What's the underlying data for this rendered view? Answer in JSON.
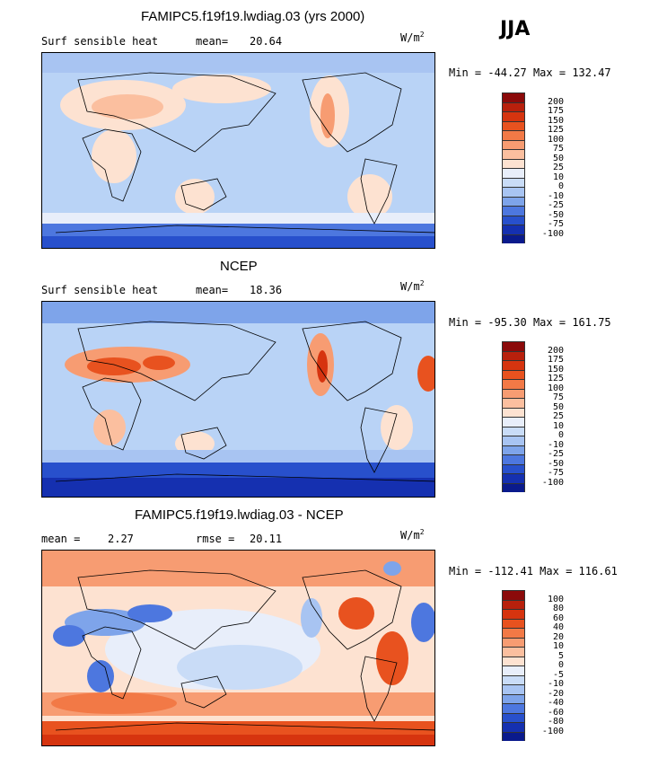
{
  "season": "JJA",
  "chart_data": [
    {
      "type": "heatmap",
      "title": "FAMIPC5.f19f19.lwdiag.03 (yrs 2000)",
      "field": "Surf sensible heat",
      "mean_label": "mean=",
      "mean": "20.64",
      "units": "W/m",
      "units_power": "2",
      "min_label": "Min =",
      "min": "-44.27",
      "max_label": "Max =",
      "max": "132.47",
      "colorbar": {
        "levels": [
          "200",
          "175",
          "150",
          "125",
          "100",
          "75",
          "50",
          "25",
          "10",
          "0",
          "-10",
          "-25",
          "-50",
          "-75",
          "-100"
        ],
        "colors": [
          "#8b0a0a",
          "#b8200c",
          "#d6340f",
          "#e8521f",
          "#f27946",
          "#f79c72",
          "#fbbf9f",
          "#fde2d1",
          "#e8eefa",
          "#c9dcf7",
          "#a8c4f2",
          "#7ea4ea",
          "#4d77df",
          "#2850cc",
          "#1530b0",
          "#0a1a8c"
        ]
      }
    },
    {
      "type": "heatmap",
      "title": "NCEP",
      "field": "Surf sensible heat",
      "mean_label": "mean=",
      "mean": "18.36",
      "units": "W/m",
      "units_power": "2",
      "min_label": "Min =",
      "min": "-95.30",
      "max_label": "Max =",
      "max": "161.75",
      "colorbar": {
        "levels": [
          "200",
          "175",
          "150",
          "125",
          "100",
          "75",
          "50",
          "25",
          "10",
          "0",
          "-10",
          "-25",
          "-50",
          "-75",
          "-100"
        ],
        "colors": [
          "#8b0a0a",
          "#b8200c",
          "#d6340f",
          "#e8521f",
          "#f27946",
          "#f79c72",
          "#fbbf9f",
          "#fde2d1",
          "#e8eefa",
          "#c9dcf7",
          "#a8c4f2",
          "#7ea4ea",
          "#4d77df",
          "#2850cc",
          "#1530b0",
          "#0a1a8c"
        ]
      }
    },
    {
      "type": "heatmap",
      "title": "FAMIPC5.f19f19.lwdiag.03 - NCEP",
      "mean_label": "mean =",
      "mean": "2.27",
      "rmse_label": "rmse =",
      "rmse": "20.11",
      "units": "W/m",
      "units_power": "2",
      "min_label": "Min =",
      "min": "-112.41",
      "max_label": "Max =",
      "max": "116.61",
      "colorbar": {
        "levels": [
          "100",
          "80",
          "60",
          "40",
          "20",
          "10",
          "5",
          "0",
          "-5",
          "-10",
          "-20",
          "-40",
          "-60",
          "-80",
          "-100"
        ],
        "colors": [
          "#8b0a0a",
          "#b8200c",
          "#d6340f",
          "#e8521f",
          "#f27946",
          "#f79c72",
          "#fbbf9f",
          "#fde2d1",
          "#e8eefa",
          "#c9dcf7",
          "#a8c4f2",
          "#7ea4ea",
          "#4d77df",
          "#2850cc",
          "#1530b0",
          "#0a1a8c"
        ]
      }
    }
  ]
}
